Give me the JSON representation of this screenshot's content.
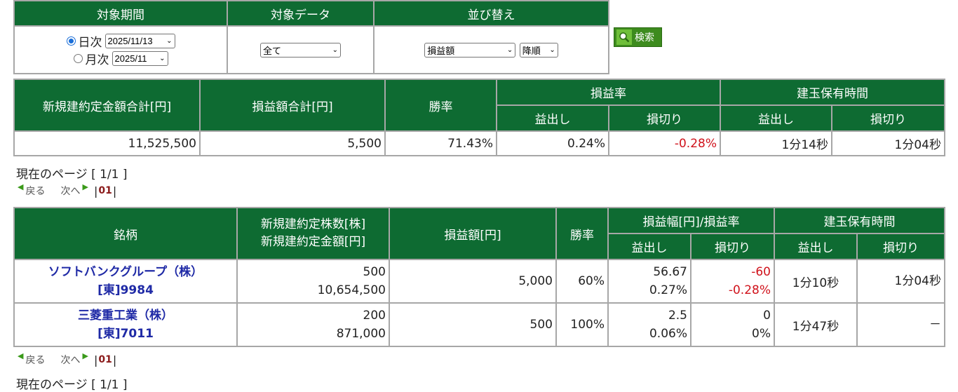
{
  "filter": {
    "headers": [
      "対象期間",
      "対象データ",
      "並び替え"
    ],
    "daily_label": "日次",
    "daily_value": "2025/11/13",
    "monthly_label": "月次",
    "monthly_value": "2025/11",
    "data_value": "全て",
    "sort_value": "損益額",
    "order_value": "降順",
    "search_label": "検索"
  },
  "summary": {
    "headers": {
      "total_amount": "新規建約定金額合計[円]",
      "total_pl": "損益額合計[円]",
      "win_rate": "勝率",
      "pl_rate": "損益率",
      "hold_time": "建玉保有時間",
      "profit": "益出し",
      "loss": "損切り"
    },
    "values": {
      "total_amount": "11,525,500",
      "total_pl": "5,500",
      "win_rate": "71.43%",
      "pl_rate_profit": "0.24%",
      "pl_rate_loss": "-0.28%",
      "hold_profit": "1分14秒",
      "hold_loss": "1分04秒"
    }
  },
  "pager": {
    "page_info": "現在のページ [ 1/1 ]",
    "prev": "戻る",
    "next": "次へ",
    "current": "01"
  },
  "detail": {
    "headers": {
      "stock": "銘柄",
      "qty_amount_1": "新規建約定株数[株]",
      "qty_amount_2": "新規建約定金額[円]",
      "pl": "損益額[円]",
      "win_rate": "勝率",
      "range_rate": "損益幅[円]/損益率",
      "hold_time": "建玉保有時間",
      "profit": "益出し",
      "loss": "損切り"
    },
    "rows": [
      {
        "name": "ソフトバンクグループ（株）",
        "code": "[東]9984",
        "qty": "500",
        "amount": "10,654,500",
        "pl": "5,000",
        "win_rate": "60%",
        "profit_range": "56.67",
        "profit_rate": "0.27%",
        "loss_range": "-60",
        "loss_rate": "-0.28%",
        "hold_profit": "1分10秒",
        "hold_loss": "1分04秒"
      },
      {
        "name": "三菱重工業（株）",
        "code": "[東]7011",
        "qty": "200",
        "amount": "871,000",
        "pl": "500",
        "win_rate": "100%",
        "profit_range": "2.5",
        "profit_rate": "0.06%",
        "loss_range": "0",
        "loss_rate": "0%",
        "hold_profit": "1分47秒",
        "hold_loss": "－"
      }
    ]
  },
  "colors": {
    "header_green": "#0e6b32",
    "loss_red": "#d0121b",
    "link_blue": "#1f2aa6"
  }
}
